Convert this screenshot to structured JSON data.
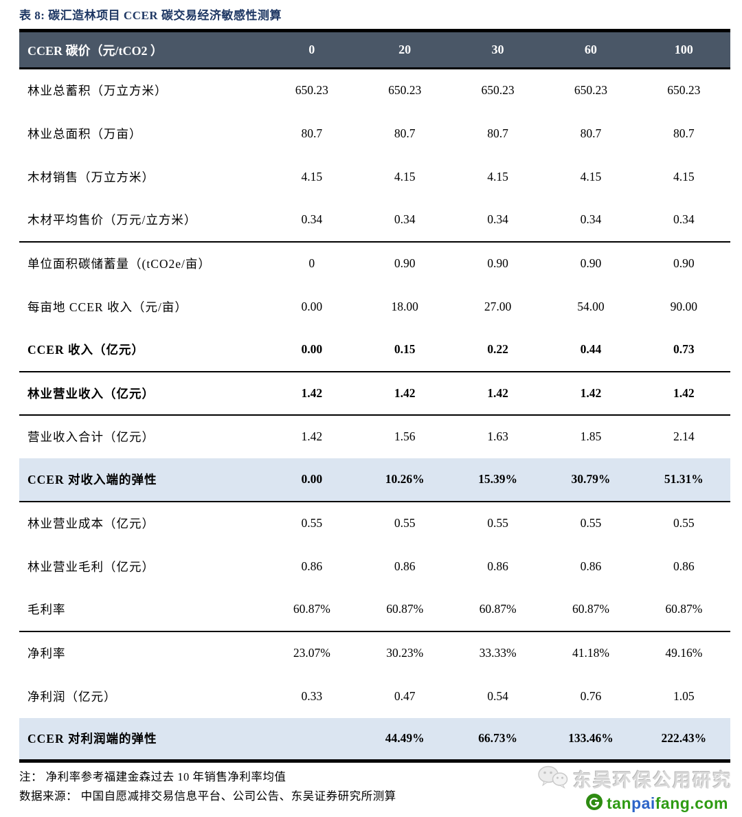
{
  "title": "表 8:  碳汇造林项目 CCER 碳交易经济敏感性测算",
  "colors": {
    "title_navy": "#1F3864",
    "header_bg": "#4A5767",
    "header_text": "#FFFFFF",
    "highlight_row_bg": "#DBE5F1",
    "border_black": "#000000",
    "watermark_gray": "#D9D9D9",
    "site_green": "#2E9B13",
    "site_blue": "#2B63C8"
  },
  "table": {
    "header": {
      "label": "CCER 碳价（元/tCO2 ）",
      "columns": [
        "0",
        "20",
        "30",
        "60",
        "100"
      ]
    },
    "rows": [
      {
        "label": "林业总蓄积（万立方米）",
        "values": [
          "650.23",
          "650.23",
          "650.23",
          "650.23",
          "650.23"
        ],
        "bold": false,
        "highlight": false,
        "divider": false
      },
      {
        "label": "林业总面积（万亩）",
        "values": [
          "80.7",
          "80.7",
          "80.7",
          "80.7",
          "80.7"
        ],
        "bold": false,
        "highlight": false,
        "divider": false
      },
      {
        "label": "木材销售（万立方米）",
        "values": [
          "4.15",
          "4.15",
          "4.15",
          "4.15",
          "4.15"
        ],
        "bold": false,
        "highlight": false,
        "divider": false
      },
      {
        "label": "木材平均售价（万元/立方米）",
        "values": [
          "0.34",
          "0.34",
          "0.34",
          "0.34",
          "0.34"
        ],
        "bold": false,
        "highlight": false,
        "divider": true
      },
      {
        "label": "单位面积碳储蓄量（(tCO2e/亩）",
        "values": [
          "0",
          "0.90",
          "0.90",
          "0.90",
          "0.90"
        ],
        "bold": false,
        "highlight": false,
        "divider": false
      },
      {
        "label": "每亩地 CCER 收入（元/亩）",
        "values": [
          "0.00",
          "18.00",
          "27.00",
          "54.00",
          "90.00"
        ],
        "bold": false,
        "highlight": false,
        "divider": false
      },
      {
        "label": "CCER 收入（亿元）",
        "values": [
          "0.00",
          "0.15",
          "0.22",
          "0.44",
          "0.73"
        ],
        "bold": true,
        "highlight": false,
        "divider": true
      },
      {
        "label": "林业营业收入（亿元）",
        "values": [
          "1.42",
          "1.42",
          "1.42",
          "1.42",
          "1.42"
        ],
        "bold": true,
        "highlight": false,
        "divider": true
      },
      {
        "label": "营业收入合计（亿元）",
        "values": [
          "1.42",
          "1.56",
          "1.63",
          "1.85",
          "2.14"
        ],
        "bold": false,
        "highlight": false,
        "divider": false
      },
      {
        "label": "CCER 对收入端的弹性",
        "values": [
          "0.00",
          "10.26%",
          "15.39%",
          "30.79%",
          "51.31%"
        ],
        "bold": true,
        "highlight": true,
        "divider": true
      },
      {
        "label": "林业营业成本（亿元）",
        "values": [
          "0.55",
          "0.55",
          "0.55",
          "0.55",
          "0.55"
        ],
        "bold": false,
        "highlight": false,
        "divider": false
      },
      {
        "label": "林业营业毛利（亿元）",
        "values": [
          "0.86",
          "0.86",
          "0.86",
          "0.86",
          "0.86"
        ],
        "bold": false,
        "highlight": false,
        "divider": false
      },
      {
        "label": "毛利率",
        "values": [
          "60.87%",
          "60.87%",
          "60.87%",
          "60.87%",
          "60.87%"
        ],
        "bold": false,
        "highlight": false,
        "divider": true
      },
      {
        "label": "净利率",
        "values": [
          "23.07%",
          "30.23%",
          "33.33%",
          "41.18%",
          "49.16%"
        ],
        "bold": false,
        "highlight": false,
        "divider": false
      },
      {
        "label": "净利润（亿元）",
        "values": [
          "0.33",
          "0.47",
          "0.54",
          "0.76",
          "1.05"
        ],
        "bold": false,
        "highlight": false,
        "divider": false
      },
      {
        "label": "CCER 对利润端的弹性",
        "values": [
          "",
          "44.49%",
          "66.73%",
          "133.46%",
          "222.43%"
        ],
        "bold": true,
        "highlight": true,
        "divider": false
      }
    ]
  },
  "footer": {
    "note": "注：  净利率参考福建金森过去 10 年销售净利率均值",
    "source": "数据来源：  中国自愿减排交易信息平台、公司公告、东吴证券研究所测算"
  },
  "watermark": {
    "wechat_name": "东吴环保公用研究",
    "site_segments": [
      {
        "text": "tan",
        "color": "#2E9B13"
      },
      {
        "text": "pai",
        "color": "#2B63C8"
      },
      {
        "text": "fang",
        "color": "#2E9B13"
      },
      {
        "text": ".com",
        "color": "#2E9B13"
      }
    ]
  }
}
